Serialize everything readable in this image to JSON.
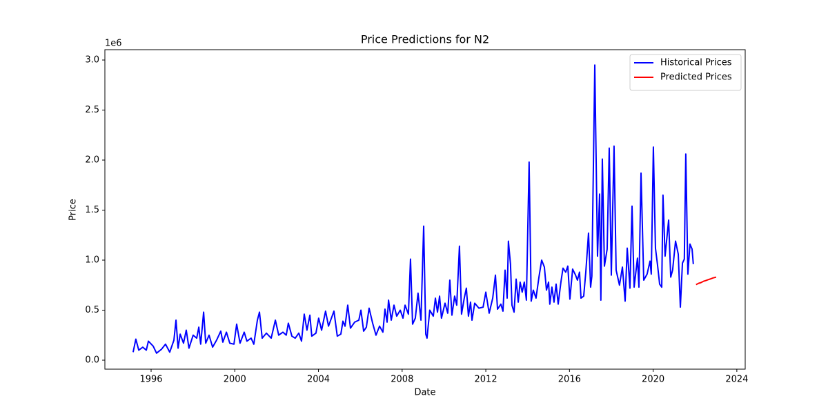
{
  "chart_data": {
    "type": "line",
    "title": "Price Predictions for N2",
    "x_label": "Date",
    "y_label": "Price",
    "y_offset_label": "1e6",
    "xlim": [
      1993.79,
      2024.4
    ],
    "ylim": [
      -89700,
      3103400
    ],
    "xticks": [
      1996,
      2000,
      2004,
      2008,
      2012,
      2016,
      2020,
      2024
    ],
    "yticks": [
      {
        "value": 0,
        "label": "0.0"
      },
      {
        "value": 500000,
        "label": "0.5"
      },
      {
        "value": 1000000,
        "label": "1.0"
      },
      {
        "value": 1500000,
        "label": "1.5"
      },
      {
        "value": 2000000,
        "label": "2.0"
      },
      {
        "value": 2500000,
        "label": "2.5"
      },
      {
        "value": 3000000,
        "label": "3.0"
      }
    ],
    "grid": false,
    "legend_position": "upper right",
    "series": [
      {
        "name": "Historical Prices",
        "color": "#0000ff",
        "x": [
          1995.14,
          1995.27,
          1995.41,
          1995.6,
          1995.77,
          1995.87,
          1996.1,
          1996.26,
          1996.5,
          1996.69,
          1996.89,
          1997.09,
          1997.19,
          1997.29,
          1997.39,
          1997.55,
          1997.68,
          1997.81,
          1998.01,
          1998.18,
          1998.28,
          1998.37,
          1998.51,
          1998.61,
          1998.77,
          1998.94,
          1999.13,
          1999.33,
          1999.43,
          1999.6,
          1999.76,
          1999.96,
          2000.09,
          2000.25,
          2000.45,
          2000.58,
          2000.78,
          2000.91,
          2001.08,
          2001.18,
          2001.31,
          2001.51,
          2001.74,
          2001.94,
          2002.1,
          2002.3,
          2002.46,
          2002.56,
          2002.73,
          2002.89,
          2003.06,
          2003.19,
          2003.32,
          2003.45,
          2003.59,
          2003.68,
          2003.88,
          2004.01,
          2004.15,
          2004.34,
          2004.48,
          2004.74,
          2004.9,
          2005.07,
          2005.17,
          2005.27,
          2005.4,
          2005.53,
          2005.73,
          2005.93,
          2006.03,
          2006.16,
          2006.29,
          2006.42,
          2006.59,
          2006.75,
          2006.92,
          2007.08,
          2007.18,
          2007.28,
          2007.35,
          2007.48,
          2007.61,
          2007.74,
          2007.91,
          2008.04,
          2008.14,
          2008.3,
          2008.4,
          2008.5,
          2008.63,
          2008.76,
          2008.9,
          2009.03,
          2009.13,
          2009.19,
          2009.32,
          2009.49,
          2009.59,
          2009.69,
          2009.79,
          2009.88,
          2010.05,
          2010.18,
          2010.28,
          2010.38,
          2010.51,
          2010.61,
          2010.74,
          2010.84,
          2010.97,
          2011.07,
          2011.17,
          2011.27,
          2011.34,
          2011.47,
          2011.67,
          2011.87,
          2012.0,
          2012.16,
          2012.33,
          2012.46,
          2012.56,
          2012.72,
          2012.82,
          2012.92,
          2013.02,
          2013.08,
          2013.18,
          2013.25,
          2013.35,
          2013.45,
          2013.55,
          2013.64,
          2013.74,
          2013.84,
          2013.94,
          2014.07,
          2014.17,
          2014.27,
          2014.4,
          2014.54,
          2014.67,
          2014.8,
          2014.9,
          2015.0,
          2015.06,
          2015.16,
          2015.26,
          2015.36,
          2015.46,
          2015.59,
          2015.69,
          2015.82,
          2015.92,
          2016.02,
          2016.15,
          2016.29,
          2016.38,
          2016.48,
          2016.55,
          2016.68,
          2016.78,
          2016.91,
          2017.01,
          2017.07,
          2017.21,
          2017.34,
          2017.44,
          2017.5,
          2017.57,
          2017.67,
          2017.8,
          2017.9,
          2018.0,
          2018.13,
          2018.23,
          2018.39,
          2018.53,
          2018.66,
          2018.76,
          2018.89,
          2018.99,
          2019.09,
          2019.25,
          2019.32,
          2019.42,
          2019.55,
          2019.71,
          2019.85,
          2019.91,
          2020.01,
          2020.11,
          2020.21,
          2020.31,
          2020.41,
          2020.47,
          2020.57,
          2020.74,
          2020.84,
          2020.93,
          2021.07,
          2021.2,
          2021.3,
          2021.4,
          2021.49,
          2021.56,
          2021.66,
          2021.76,
          2021.86,
          2021.92
        ],
        "values": [
          80000,
          210000,
          100000,
          130000,
          100000,
          190000,
          140000,
          70000,
          110000,
          160000,
          80000,
          200000,
          400000,
          120000,
          260000,
          170000,
          300000,
          120000,
          250000,
          220000,
          330000,
          160000,
          480000,
          170000,
          250000,
          130000,
          200000,
          290000,
          180000,
          280000,
          170000,
          160000,
          360000,
          170000,
          280000,
          190000,
          220000,
          160000,
          400000,
          480000,
          220000,
          270000,
          220000,
          400000,
          250000,
          280000,
          250000,
          370000,
          240000,
          220000,
          270000,
          190000,
          460000,
          300000,
          450000,
          240000,
          270000,
          420000,
          300000,
          490000,
          340000,
          490000,
          240000,
          260000,
          390000,
          340000,
          550000,
          320000,
          380000,
          400000,
          500000,
          290000,
          330000,
          520000,
          370000,
          250000,
          340000,
          280000,
          510000,
          380000,
          600000,
          400000,
          550000,
          440000,
          500000,
          420000,
          550000,
          460000,
          1010000,
          360000,
          420000,
          670000,
          400000,
          1340000,
          260000,
          220000,
          500000,
          440000,
          620000,
          480000,
          640000,
          420000,
          570000,
          470000,
          800000,
          450000,
          640000,
          550000,
          1140000,
          460000,
          620000,
          720000,
          440000,
          580000,
          400000,
          570000,
          520000,
          530000,
          680000,
          470000,
          620000,
          850000,
          510000,
          560000,
          490000,
          900000,
          620000,
          1190000,
          960000,
          550000,
          480000,
          810000,
          580000,
          780000,
          680000,
          780000,
          600000,
          1980000,
          590000,
          700000,
          620000,
          830000,
          1000000,
          930000,
          700000,
          780000,
          560000,
          730000,
          580000,
          760000,
          560000,
          780000,
          920000,
          880000,
          940000,
          610000,
          910000,
          850000,
          800000,
          880000,
          620000,
          640000,
          880000,
          1270000,
          730000,
          840000,
          2950000,
          1040000,
          1660000,
          600000,
          2010000,
          940000,
          1110000,
          2120000,
          850000,
          2140000,
          900000,
          750000,
          930000,
          590000,
          1120000,
          720000,
          1540000,
          730000,
          1020000,
          730000,
          1870000,
          800000,
          860000,
          990000,
          860000,
          2130000,
          1120000,
          950000,
          760000,
          730000,
          1650000,
          1040000,
          1400000,
          830000,
          900000,
          1190000,
          1060000,
          530000,
          970000,
          1010000,
          2060000,
          860000,
          1160000,
          1110000,
          960000
        ]
      },
      {
        "name": "Predicted Prices",
        "color": "#ff0000",
        "x": [
          2022.05,
          2022.17,
          2022.28,
          2022.4,
          2022.51,
          2022.63,
          2022.74,
          2022.86,
          2023.01
        ],
        "values": [
          755000,
          768000,
          775000,
          788000,
          795000,
          805000,
          812000,
          822000,
          830000
        ]
      }
    ]
  }
}
